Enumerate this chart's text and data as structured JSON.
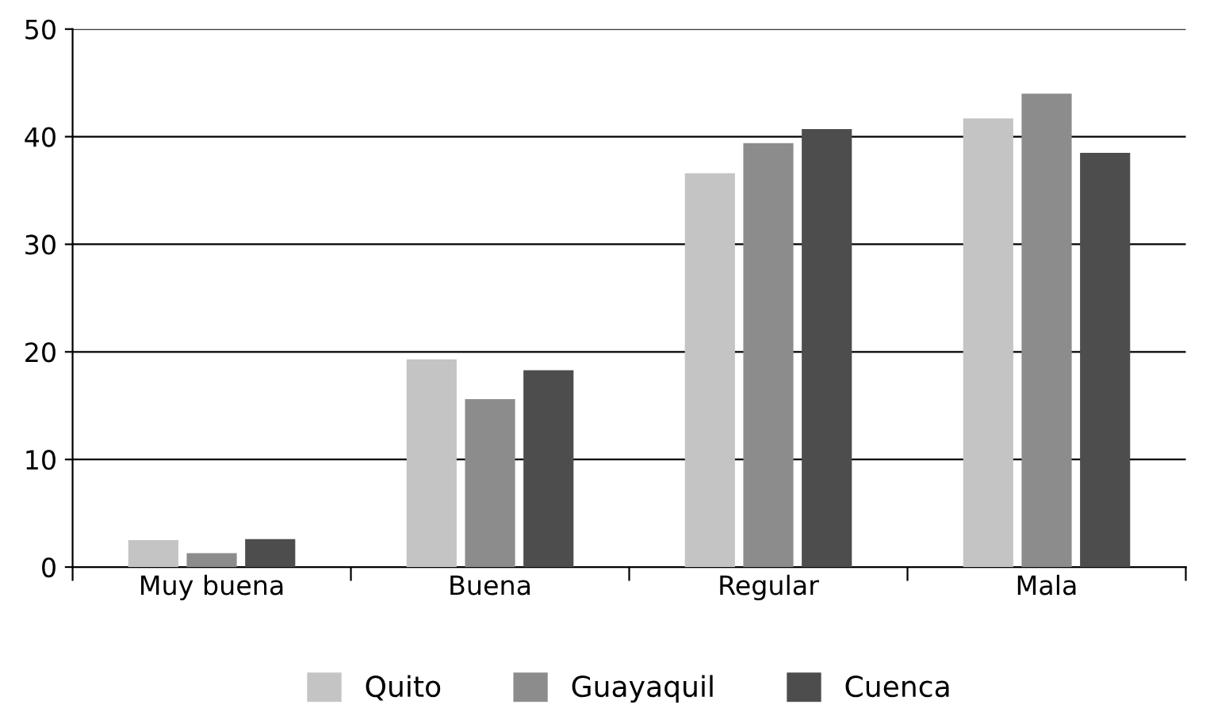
{
  "chart_data": {
    "type": "bar",
    "categories": [
      "Muy buena",
      "Buena",
      "Regular",
      "Mala"
    ],
    "series": [
      {
        "name": "Quito",
        "color": "#c4c4c4",
        "values": [
          2.5,
          19.3,
          36.6,
          41.7
        ]
      },
      {
        "name": "Guayaquil",
        "color": "#8c8c8c",
        "values": [
          1.3,
          15.6,
          39.4,
          44.0
        ]
      },
      {
        "name": "Cuenca",
        "color": "#4d4d4d",
        "values": [
          2.6,
          18.3,
          40.7,
          38.5
        ]
      }
    ],
    "ylim": [
      0,
      50
    ],
    "yticks": [
      0,
      10,
      20,
      30,
      40,
      50
    ],
    "grid": "y",
    "legend": "bottom"
  }
}
